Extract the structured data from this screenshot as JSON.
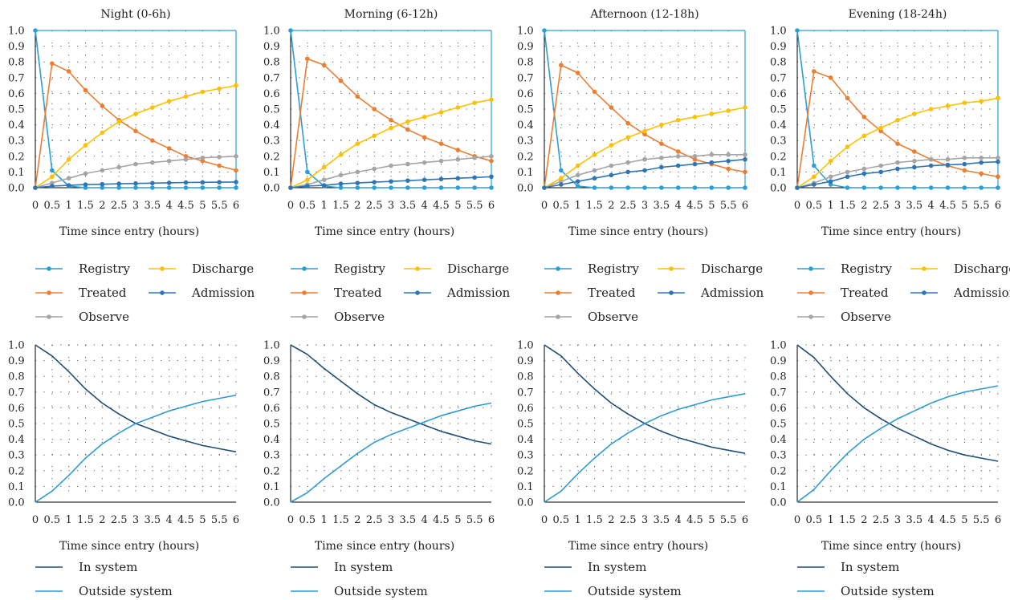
{
  "shared": {
    "x": [
      0,
      0.5,
      1,
      1.5,
      2,
      2.5,
      3,
      3.5,
      4,
      4.5,
      5,
      5.5,
      6
    ],
    "x_tick_labels": [
      "0",
      "0.5",
      "1",
      "1.5",
      "2",
      "2.5",
      "3",
      "3.5",
      "4",
      "4.5",
      "5",
      "5.5",
      "6"
    ],
    "y_tick_labels": [
      "0.0",
      "0.1",
      "0.2",
      "0.3",
      "0.4",
      "0.5",
      "0.6",
      "0.7",
      "0.8",
      "0.9",
      "1.0"
    ],
    "xlabel": "Time since entry (hours)",
    "ylim": [
      0,
      1
    ],
    "xlim": [
      0,
      6
    ]
  },
  "chart_data": [
    {
      "type": "line",
      "row": "top",
      "panel": "Night",
      "title": "Night (0-6h)",
      "xlabel": "Time since entry (hours)",
      "ylabel": "",
      "grid": "dotted",
      "legend": "below",
      "x": [
        0,
        0.5,
        1,
        1.5,
        2,
        2.5,
        3,
        3.5,
        4,
        4.5,
        5,
        5.5,
        6
      ],
      "series": [
        {
          "name": "Registry",
          "color": "#2a9fd6",
          "markers": true,
          "values": [
            1.0,
            0.11,
            0.01,
            0.0,
            0.0,
            0.0,
            0.0,
            0.0,
            0.0,
            0.0,
            0.0,
            0.0,
            0.0
          ]
        },
        {
          "name": "Treated",
          "color": "#ed7d31",
          "markers": true,
          "values": [
            0.0,
            0.79,
            0.74,
            0.62,
            0.52,
            0.43,
            0.36,
            0.3,
            0.25,
            0.2,
            0.17,
            0.14,
            0.11
          ]
        },
        {
          "name": "Observe",
          "color": "#a5a5a5",
          "markers": true,
          "values": [
            0.0,
            0.03,
            0.06,
            0.09,
            0.11,
            0.13,
            0.15,
            0.16,
            0.17,
            0.18,
            0.19,
            0.195,
            0.2
          ]
        },
        {
          "name": "Discharge",
          "color": "#ffc000",
          "markers": true,
          "values": [
            0.0,
            0.07,
            0.18,
            0.27,
            0.35,
            0.42,
            0.47,
            0.51,
            0.55,
            0.58,
            0.61,
            0.63,
            0.65
          ]
        },
        {
          "name": "Admission",
          "color": "#2e75b6",
          "markers": true,
          "values": [
            0.0,
            0.01,
            0.015,
            0.02,
            0.022,
            0.025,
            0.027,
            0.029,
            0.031,
            0.033,
            0.034,
            0.035,
            0.036
          ]
        }
      ]
    },
    {
      "type": "line",
      "row": "top",
      "panel": "Morning",
      "title": "Morning (6-12h)",
      "xlabel": "Time since entry (hours)",
      "ylabel": "",
      "grid": "dotted",
      "legend": "below",
      "x": [
        0,
        0.5,
        1,
        1.5,
        2,
        2.5,
        3,
        3.5,
        4,
        4.5,
        5,
        5.5,
        6
      ],
      "series": [
        {
          "name": "Registry",
          "color": "#2a9fd6",
          "markers": true,
          "values": [
            1.0,
            0.1,
            0.01,
            0.0,
            0.0,
            0.0,
            0.0,
            0.0,
            0.0,
            0.0,
            0.0,
            0.0,
            0.0
          ]
        },
        {
          "name": "Treated",
          "color": "#ed7d31",
          "markers": true,
          "values": [
            0.0,
            0.82,
            0.78,
            0.68,
            0.58,
            0.5,
            0.43,
            0.37,
            0.32,
            0.28,
            0.24,
            0.2,
            0.17
          ]
        },
        {
          "name": "Observe",
          "color": "#a5a5a5",
          "markers": true,
          "values": [
            0.0,
            0.02,
            0.05,
            0.08,
            0.1,
            0.12,
            0.14,
            0.15,
            0.16,
            0.17,
            0.18,
            0.19,
            0.2
          ]
        },
        {
          "name": "Discharge",
          "color": "#ffc000",
          "markers": true,
          "values": [
            0.0,
            0.05,
            0.13,
            0.21,
            0.28,
            0.33,
            0.38,
            0.42,
            0.45,
            0.48,
            0.51,
            0.54,
            0.56
          ]
        },
        {
          "name": "Admission",
          "color": "#2e75b6",
          "markers": true,
          "values": [
            0.0,
            0.01,
            0.015,
            0.025,
            0.03,
            0.035,
            0.04,
            0.045,
            0.05,
            0.055,
            0.06,
            0.065,
            0.07
          ]
        }
      ]
    },
    {
      "type": "line",
      "row": "top",
      "panel": "Afternoon",
      "title": "Afternoon (12-18h)",
      "xlabel": "Time since entry (hours)",
      "ylabel": "",
      "grid": "dotted",
      "legend": "below",
      "x": [
        0,
        0.5,
        1,
        1.5,
        2,
        2.5,
        3,
        3.5,
        4,
        4.5,
        5,
        5.5,
        6
      ],
      "series": [
        {
          "name": "Registry",
          "color": "#2a9fd6",
          "markers": true,
          "values": [
            1.0,
            0.11,
            0.01,
            0.0,
            0.0,
            0.0,
            0.0,
            0.0,
            0.0,
            0.0,
            0.0,
            0.0,
            0.0
          ]
        },
        {
          "name": "Treated",
          "color": "#ed7d31",
          "markers": true,
          "values": [
            0.0,
            0.78,
            0.73,
            0.61,
            0.51,
            0.41,
            0.34,
            0.28,
            0.23,
            0.18,
            0.15,
            0.12,
            0.1
          ]
        },
        {
          "name": "Observe",
          "color": "#a5a5a5",
          "markers": true,
          "values": [
            0.0,
            0.04,
            0.08,
            0.11,
            0.14,
            0.16,
            0.18,
            0.19,
            0.2,
            0.2,
            0.21,
            0.21,
            0.21
          ]
        },
        {
          "name": "Discharge",
          "color": "#ffc000",
          "markers": true,
          "values": [
            0.0,
            0.06,
            0.14,
            0.21,
            0.27,
            0.32,
            0.36,
            0.4,
            0.43,
            0.45,
            0.47,
            0.49,
            0.51
          ]
        },
        {
          "name": "Admission",
          "color": "#2e75b6",
          "markers": true,
          "values": [
            0.0,
            0.02,
            0.04,
            0.06,
            0.08,
            0.1,
            0.11,
            0.13,
            0.14,
            0.15,
            0.16,
            0.17,
            0.18
          ]
        }
      ]
    },
    {
      "type": "line",
      "row": "top",
      "panel": "Evening",
      "title": "Evening (18-24h)",
      "xlabel": "Time since entry (hours)",
      "ylabel": "",
      "grid": "dotted",
      "legend": "below",
      "x": [
        0,
        0.5,
        1,
        1.5,
        2,
        2.5,
        3,
        3.5,
        4,
        4.5,
        5,
        5.5,
        6
      ],
      "series": [
        {
          "name": "Registry",
          "color": "#2a9fd6",
          "markers": true,
          "values": [
            1.0,
            0.14,
            0.02,
            0.0,
            0.0,
            0.0,
            0.0,
            0.0,
            0.0,
            0.0,
            0.0,
            0.0,
            0.0
          ]
        },
        {
          "name": "Treated",
          "color": "#ed7d31",
          "markers": true,
          "values": [
            0.0,
            0.74,
            0.7,
            0.57,
            0.45,
            0.36,
            0.28,
            0.23,
            0.18,
            0.14,
            0.11,
            0.09,
            0.07
          ]
        },
        {
          "name": "Observe",
          "color": "#a5a5a5",
          "markers": true,
          "values": [
            0.0,
            0.03,
            0.07,
            0.1,
            0.12,
            0.14,
            0.16,
            0.17,
            0.18,
            0.18,
            0.19,
            0.19,
            0.19
          ]
        },
        {
          "name": "Discharge",
          "color": "#ffc000",
          "markers": true,
          "values": [
            0.0,
            0.07,
            0.17,
            0.26,
            0.33,
            0.38,
            0.43,
            0.47,
            0.5,
            0.52,
            0.54,
            0.55,
            0.57
          ]
        },
        {
          "name": "Admission",
          "color": "#2e75b6",
          "markers": true,
          "values": [
            0.0,
            0.02,
            0.04,
            0.07,
            0.09,
            0.1,
            0.12,
            0.13,
            0.14,
            0.145,
            0.15,
            0.16,
            0.165
          ]
        }
      ]
    },
    {
      "type": "line",
      "row": "bottom",
      "panel": "Night",
      "title": "",
      "xlabel": "Time since entry (hours)",
      "ylabel": "",
      "grid": "dotted",
      "legend": "below",
      "x": [
        0,
        0.5,
        1,
        1.5,
        2,
        2.5,
        3,
        3.5,
        4,
        4.5,
        5,
        5.5,
        6
      ],
      "series": [
        {
          "name": "In system",
          "color": "#1f4e79",
          "markers": false,
          "values": [
            1.0,
            0.93,
            0.83,
            0.72,
            0.63,
            0.56,
            0.5,
            0.46,
            0.42,
            0.39,
            0.36,
            0.34,
            0.32
          ]
        },
        {
          "name": "Outside system",
          "color": "#2e9bd6",
          "markers": false,
          "values": [
            0.0,
            0.07,
            0.17,
            0.28,
            0.37,
            0.44,
            0.5,
            0.54,
            0.58,
            0.61,
            0.64,
            0.66,
            0.68
          ]
        }
      ]
    },
    {
      "type": "line",
      "row": "bottom",
      "panel": "Morning",
      "title": "",
      "xlabel": "Time since entry (hours)",
      "ylabel": "",
      "grid": "dotted",
      "legend": "below",
      "x": [
        0,
        0.5,
        1,
        1.5,
        2,
        2.5,
        3,
        3.5,
        4,
        4.5,
        5,
        5.5,
        6
      ],
      "series": [
        {
          "name": "In system",
          "color": "#1f4e79",
          "markers": false,
          "values": [
            1.0,
            0.94,
            0.85,
            0.77,
            0.69,
            0.62,
            0.57,
            0.53,
            0.49,
            0.45,
            0.42,
            0.39,
            0.37
          ]
        },
        {
          "name": "Outside system",
          "color": "#2e9bd6",
          "markers": false,
          "values": [
            0.0,
            0.06,
            0.15,
            0.23,
            0.31,
            0.38,
            0.43,
            0.47,
            0.51,
            0.55,
            0.58,
            0.61,
            0.63
          ]
        }
      ]
    },
    {
      "type": "line",
      "row": "bottom",
      "panel": "Afternoon",
      "title": "",
      "xlabel": "Time since entry (hours)",
      "ylabel": "",
      "grid": "dotted",
      "legend": "below",
      "x": [
        0,
        0.5,
        1,
        1.5,
        2,
        2.5,
        3,
        3.5,
        4,
        4.5,
        5,
        5.5,
        6
      ],
      "series": [
        {
          "name": "In system",
          "color": "#1f4e79",
          "markers": false,
          "values": [
            1.0,
            0.93,
            0.82,
            0.72,
            0.63,
            0.56,
            0.5,
            0.45,
            0.41,
            0.38,
            0.35,
            0.33,
            0.31
          ]
        },
        {
          "name": "Outside system",
          "color": "#2e9bd6",
          "markers": false,
          "values": [
            0.0,
            0.07,
            0.18,
            0.28,
            0.37,
            0.44,
            0.5,
            0.55,
            0.59,
            0.62,
            0.65,
            0.67,
            0.69
          ]
        }
      ]
    },
    {
      "type": "line",
      "row": "bottom",
      "panel": "Evening",
      "title": "",
      "xlabel": "Time since entry (hours)",
      "ylabel": "",
      "grid": "dotted",
      "legend": "below",
      "x": [
        0,
        0.5,
        1,
        1.5,
        2,
        2.5,
        3,
        3.5,
        4,
        4.5,
        5,
        5.5,
        6
      ],
      "series": [
        {
          "name": "In system",
          "color": "#1f4e79",
          "markers": false,
          "values": [
            1.0,
            0.92,
            0.8,
            0.69,
            0.6,
            0.53,
            0.47,
            0.42,
            0.37,
            0.33,
            0.3,
            0.28,
            0.26
          ]
        },
        {
          "name": "Outside system",
          "color": "#2e9bd6",
          "markers": false,
          "values": [
            0.0,
            0.08,
            0.2,
            0.31,
            0.4,
            0.47,
            0.53,
            0.58,
            0.63,
            0.67,
            0.7,
            0.72,
            0.74
          ]
        }
      ]
    }
  ]
}
